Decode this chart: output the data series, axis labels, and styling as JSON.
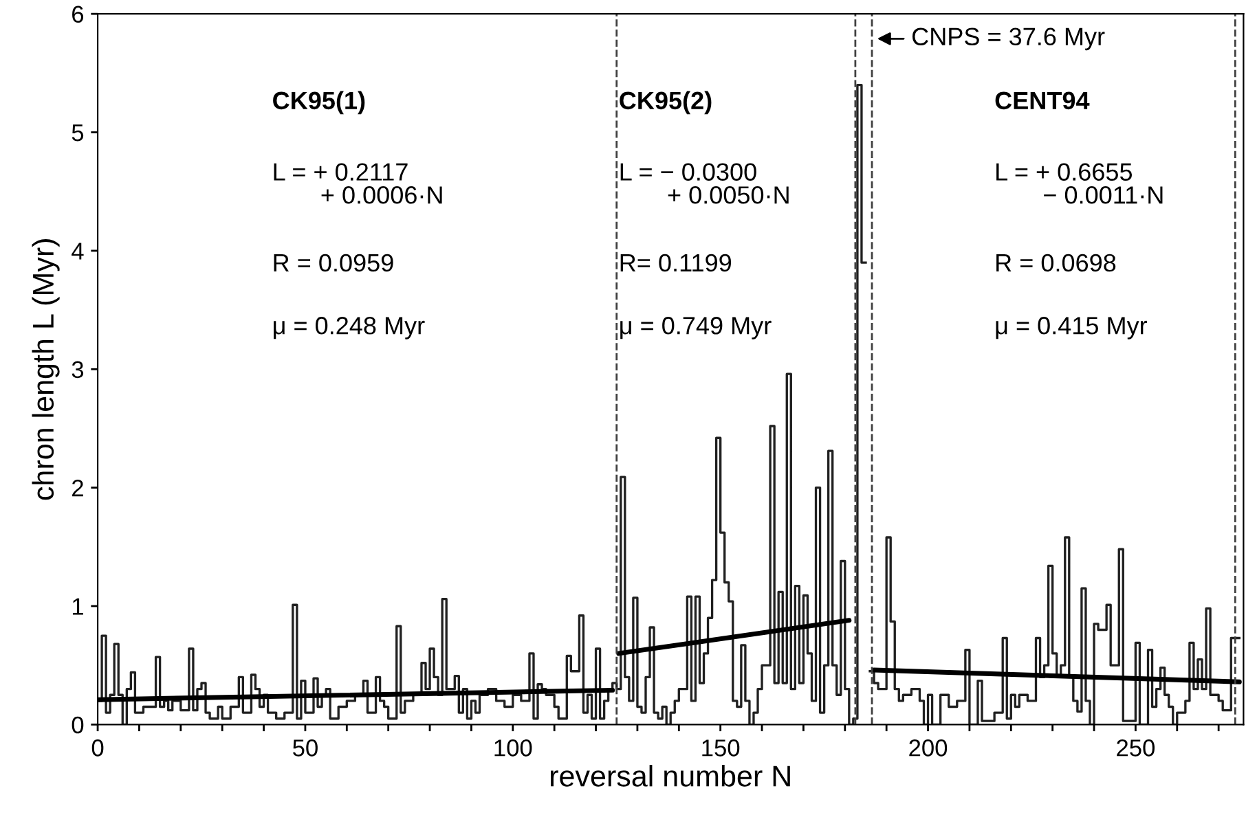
{
  "chart_data": {
    "type": "step",
    "xlabel": "reversal number N",
    "ylabel": "chron length L (Myr)",
    "xlim": [
      0,
      276
    ],
    "ylim": [
      0,
      6
    ],
    "xticks": [
      0,
      {
        "value": 10,
        "label": null
      },
      {
        "value": 20,
        "label": null
      },
      {
        "value": 30,
        "label": null
      },
      {
        "value": 40,
        "label": null
      },
      50,
      {
        "value": 60,
        "label": null
      },
      {
        "value": 70,
        "label": null
      },
      {
        "value": 80,
        "label": null
      },
      {
        "value": 90,
        "label": null
      },
      100,
      {
        "value": 110,
        "label": null
      },
      {
        "value": 120,
        "label": null
      },
      {
        "value": 130,
        "label": null
      },
      {
        "value": 140,
        "label": null
      },
      150,
      {
        "value": 160,
        "label": null
      },
      {
        "value": 170,
        "label": null
      },
      {
        "value": 180,
        "label": null
      },
      {
        "value": 190,
        "label": null
      },
      200,
      {
        "value": 210,
        "label": null
      },
      {
        "value": 220,
        "label": null
      },
      {
        "value": 230,
        "label": null
      },
      {
        "value": 240,
        "label": null
      },
      250,
      {
        "value": 260,
        "label": null
      },
      {
        "value": 270,
        "label": null
      }
    ],
    "yticks": [
      0,
      1,
      2,
      3,
      4,
      5,
      6
    ],
    "grid": false,
    "legend": false,
    "marker": "none",
    "line_style": "solid",
    "series": [
      {
        "color": "#202020",
        "x": [
          0,
          1,
          2,
          3,
          4,
          5,
          6,
          7,
          8,
          9,
          11,
          14,
          15,
          16,
          17,
          18,
          20,
          22,
          23,
          24,
          25,
          26,
          27,
          29,
          30,
          32,
          34,
          35,
          37,
          38,
          39,
          40,
          41,
          43,
          45,
          47,
          48,
          49,
          50,
          52,
          53,
          54,
          55,
          56,
          58,
          60,
          62,
          64,
          65,
          67,
          68,
          69,
          70,
          72,
          73,
          74,
          76,
          78,
          79,
          80,
          81,
          82,
          83,
          84,
          86,
          87,
          88,
          89,
          90,
          91,
          92,
          94,
          96,
          98,
          100,
          102,
          104,
          105,
          106,
          107,
          108,
          110,
          111,
          113,
          114,
          116,
          117,
          118,
          119,
          120,
          121,
          122,
          123,
          124,
          125,
          126,
          127,
          128,
          129,
          130,
          131,
          132,
          133,
          134,
          135,
          136,
          137,
          138,
          139,
          140,
          142,
          143,
          144,
          145,
          146,
          147,
          148,
          149,
          150,
          151,
          152,
          153,
          154,
          155,
          156,
          157,
          158,
          159,
          160,
          162,
          163,
          164,
          165,
          166,
          167,
          168,
          169,
          170,
          171,
          172,
          173,
          174,
          175,
          176,
          177,
          178,
          179,
          180,
          181,
          182,
          183,
          184,
          185,
          186,
          187,
          188,
          190,
          191,
          192,
          193,
          194,
          196,
          198,
          199,
          200,
          201,
          203,
          205,
          207,
          209,
          210,
          212,
          213,
          216,
          218,
          219,
          220,
          221,
          222,
          224,
          226,
          227,
          228,
          229,
          230,
          231,
          232,
          233,
          234,
          235,
          236,
          237,
          238,
          239,
          240,
          241,
          243,
          244,
          246,
          247,
          250,
          251,
          253,
          254,
          255,
          256,
          257,
          258,
          259,
          260,
          262,
          263,
          264,
          265,
          266,
          267,
          268,
          270,
          271,
          273,
          275
        ],
        "values": [
          0.2,
          0.75,
          0.1,
          0.25,
          0.68,
          0.25,
          0.0,
          0.3,
          0.44,
          0.1,
          0.15,
          0.57,
          0.15,
          0.2,
          0.12,
          0.2,
          0.12,
          0.64,
          0.12,
          0.3,
          0.35,
          0.1,
          0.05,
          0.15,
          0.05,
          0.15,
          0.4,
          0.1,
          0.42,
          0.3,
          0.15,
          0.25,
          0.1,
          0.05,
          0.1,
          1.01,
          0.05,
          0.37,
          0.1,
          0.39,
          0.15,
          0.25,
          0.3,
          0.05,
          0.15,
          0.2,
          0.25,
          0.37,
          0.1,
          0.4,
          0.2,
          0.15,
          0.05,
          0.83,
          0.1,
          0.2,
          0.25,
          0.52,
          0.3,
          0.64,
          0.4,
          0.25,
          1.06,
          0.3,
          0.41,
          0.1,
          0.3,
          0.05,
          0.2,
          0.1,
          0.25,
          0.3,
          0.2,
          0.15,
          0.25,
          0.2,
          0.6,
          0.05,
          0.34,
          0.3,
          0.25,
          0.15,
          0.05,
          0.58,
          0.45,
          0.92,
          0.1,
          0.25,
          0.05,
          0.64,
          0.05,
          0.2,
          0.3,
          0.35,
          0.3,
          2.09,
          0.4,
          0.2,
          1.07,
          0.15,
          0.1,
          0.4,
          0.82,
          0.1,
          0.05,
          0.15,
          0.0,
          0.1,
          0.2,
          0.3,
          1.08,
          0.2,
          1.08,
          0.35,
          0.6,
          0.9,
          1.22,
          2.42,
          1.62,
          1.2,
          1.04,
          0.2,
          0.15,
          0.67,
          0.2,
          0.0,
          0.1,
          0.3,
          0.5,
          2.52,
          0.35,
          1.12,
          0.35,
          2.96,
          0.3,
          1.17,
          0.35,
          1.09,
          0.6,
          0.2,
          2.0,
          0.1,
          0.5,
          2.31,
          0.5,
          0.25,
          1.38,
          0.3,
          0.0,
          0.05,
          5.4,
          3.9,
          null,
          0.45,
          0.35,
          0.3,
          1.58,
          0.87,
          0.3,
          0.2,
          0.25,
          0.3,
          0.2,
          0.0,
          0.25,
          0.0,
          0.25,
          0.15,
          0.2,
          0.63,
          0.0,
          0.37,
          0.03,
          0.1,
          0.73,
          0.05,
          0.25,
          0.15,
          0.25,
          0.2,
          0.73,
          0.4,
          0.5,
          1.34,
          0.6,
          0.4,
          0.5,
          1.58,
          0.4,
          0.2,
          0.11,
          1.15,
          0.2,
          0.0,
          0.85,
          0.8,
          1.01,
          0.5,
          1.48,
          0.03,
          0.69,
          0.0,
          0.63,
          0.15,
          0.3,
          0.48,
          0.25,
          0.15,
          0.0,
          0.1,
          0.2,
          0.69,
          0.3,
          0.55,
          0.3,
          0.98,
          0.25,
          0.2,
          0.12,
          0.73,
          0.73
        ]
      },
      {
        "type": "line",
        "color": "#000000",
        "x": [
          0,
          124
        ],
        "values": [
          0.21,
          0.29
        ]
      },
      {
        "type": "line",
        "color": "#000000",
        "x": [
          125.5,
          181
        ],
        "values": [
          0.6,
          0.88
        ]
      },
      {
        "type": "line",
        "color": "#000000",
        "x": [
          187,
          275
        ],
        "values": [
          0.46,
          0.36
        ]
      }
    ],
    "ref_lines": [
      {
        "axis": "x",
        "value": 125,
        "line_style": "dashed",
        "color": "#404040"
      },
      {
        "axis": "x",
        "value": 182.5,
        "line_style": "dashed",
        "color": "#404040"
      },
      {
        "axis": "x",
        "value": 186.5,
        "line_style": "dashed",
        "color": "#404040"
      },
      {
        "axis": "x",
        "value": 274,
        "line_style": "dashed",
        "color": "#404040"
      }
    ],
    "annotations": [
      "CK95(1)",
      "L = + 0.2117\n       + 0.0006·N",
      "R = 0.0959",
      "μ = 0.248 Myr",
      "CK95(2)",
      "L = − 0.0300\n       + 0.0050·N",
      "R= 0.1199",
      "μ = 0.749 Myr",
      "CENT94",
      "L = + 0.6655\n       − 0.0011·N",
      "R = 0.0698",
      "μ = 0.415 Myr",
      "CNPS = 37.6 Myr"
    ]
  }
}
